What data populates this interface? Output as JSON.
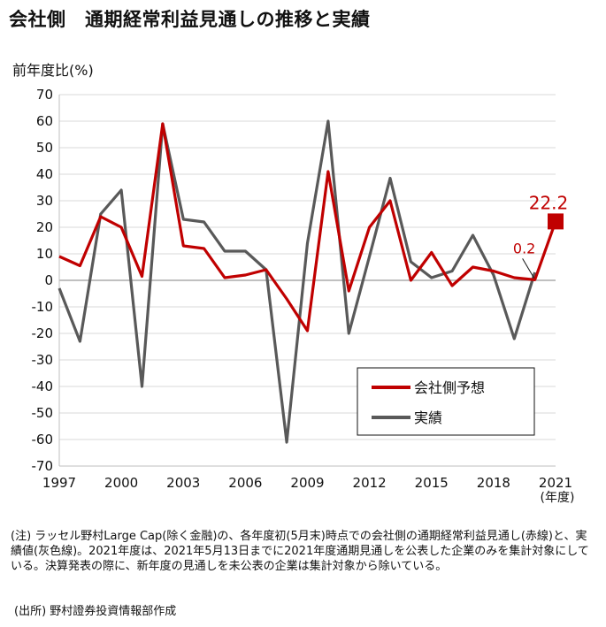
{
  "title": "会社側　通期経常利益見通しの推移と実績",
  "notes": {
    "note": "(注) ラッセル野村Large Cap(除く金融)の、各年度初(5月末)時点での会社側の通期経常利益見通し(赤線)と、実績値(灰色線)。2021年度は、2021年5月13日までに2021年度通期見通しを公表した企業のみを集計対象にしている。決算発表の際に、新年度の見通しを未公表の企業は集計対象から除いている。",
    "source": "(出所) 野村證券投資情報部作成"
  },
  "chart_data": {
    "type": "line",
    "title": "会社側　通期経常利益見通しの推移と実績",
    "ylabel": "前年度比(%)",
    "xlabel": "(年度)",
    "ylim": [
      -70,
      70
    ],
    "yticks": [
      70,
      60,
      50,
      40,
      30,
      20,
      10,
      0,
      -10,
      -20,
      -30,
      -40,
      -50,
      -60,
      -70
    ],
    "xlim": [
      1997,
      2021
    ],
    "xticks": [
      1997,
      2000,
      2003,
      2006,
      2009,
      2012,
      2015,
      2018,
      2021
    ],
    "grid": true,
    "legend_position": "lower-right",
    "x": [
      1997,
      1998,
      1999,
      2000,
      2001,
      2002,
      2003,
      2004,
      2005,
      2006,
      2007,
      2008,
      2009,
      2010,
      2011,
      2012,
      2013,
      2014,
      2015,
      2016,
      2017,
      2018,
      2019,
      2020,
      2021
    ],
    "series": [
      {
        "name": "会社側予想",
        "color": "#c00000",
        "values": [
          9,
          5.5,
          24,
          20,
          1.5,
          59,
          13,
          12,
          1,
          2,
          4,
          -7,
          -19,
          41,
          -4,
          20,
          30,
          0,
          10.5,
          -2,
          5,
          3.5,
          1,
          0.2,
          22.2
        ]
      },
      {
        "name": "実績",
        "color": "#595959",
        "values": [
          -3,
          -23,
          25,
          34,
          -40,
          59,
          23,
          22,
          11,
          11,
          4,
          -61,
          14,
          60,
          -20,
          9,
          38.5,
          7,
          1,
          3.5,
          17,
          2,
          -22,
          3,
          null
        ]
      }
    ],
    "annotations": [
      {
        "text": "22.2",
        "x": 2021,
        "y": 22.2,
        "color": "#c00000"
      },
      {
        "text": "0.2",
        "x": 2020,
        "y": 0.2,
        "color": "#c00000"
      }
    ]
  }
}
